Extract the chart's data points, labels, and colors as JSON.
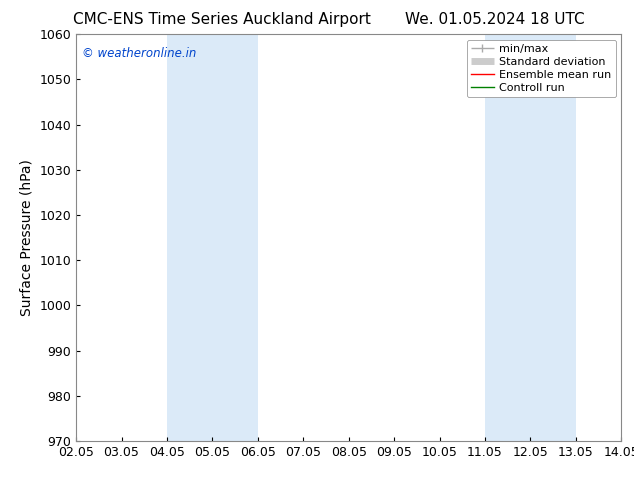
{
  "title_left": "CMC-ENS Time Series Auckland Airport",
  "title_right": "We. 01.05.2024 18 UTC",
  "ylabel": "Surface Pressure (hPa)",
  "ylim": [
    970,
    1060
  ],
  "yticks": [
    970,
    980,
    990,
    1000,
    1010,
    1020,
    1030,
    1040,
    1050,
    1060
  ],
  "xtick_labels": [
    "02.05",
    "03.05",
    "04.05",
    "05.05",
    "06.05",
    "07.05",
    "08.05",
    "09.05",
    "10.05",
    "11.05",
    "12.05",
    "13.05",
    "14.05"
  ],
  "xtick_positions": [
    2,
    3,
    4,
    5,
    6,
    7,
    8,
    9,
    10,
    11,
    12,
    13,
    14
  ],
  "shaded_regions": [
    {
      "x_start": 4.0,
      "x_end": 5.0
    },
    {
      "x_start": 5.0,
      "x_end": 6.0
    },
    {
      "x_start": 11.0,
      "x_end": 12.0
    },
    {
      "x_start": 12.0,
      "x_end": 13.0
    }
  ],
  "shaded_color": "#dbeaf8",
  "watermark_text": "© weatheronline.in",
  "watermark_color": "#0044cc",
  "background_color": "#ffffff",
  "legend_entries": [
    {
      "label": "min/max",
      "color": "#aaaaaa",
      "linewidth": 1.0
    },
    {
      "label": "Standard deviation",
      "color": "#cccccc",
      "linewidth": 5
    },
    {
      "label": "Ensemble mean run",
      "color": "red",
      "linewidth": 1.0
    },
    {
      "label": "Controll run",
      "color": "green",
      "linewidth": 1.0
    }
  ],
  "title_fontsize": 11,
  "axis_fontsize": 10,
  "tick_fontsize": 9,
  "legend_fontsize": 8
}
